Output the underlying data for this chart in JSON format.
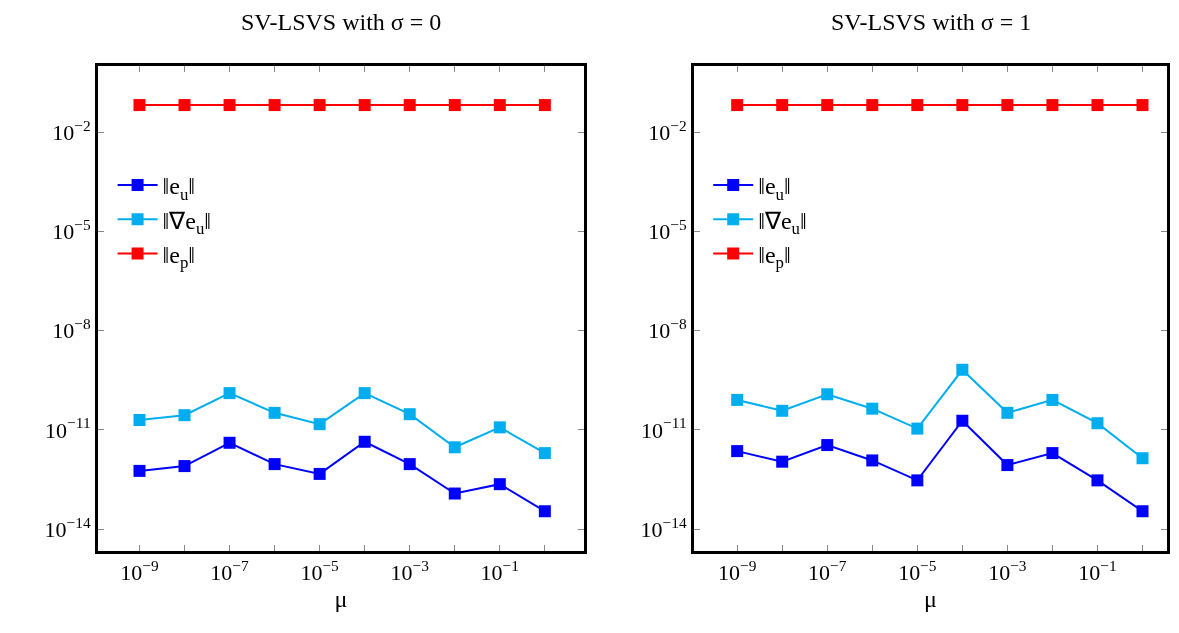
{
  "chart_data": [
    {
      "type": "line",
      "title": "SV-LSVS with σ = 0",
      "xlabel": "μ",
      "log": "xy",
      "legend": "top left",
      "marker": "square",
      "line_style": "solid",
      "x": [
        1e-09,
        1e-08,
        1e-07,
        1e-06,
        1e-05,
        0.0001,
        0.001,
        0.01,
        0.1,
        1
      ],
      "xlim": [
        1.2e-10,
        7.4
      ],
      "ylim": [
        2.2e-15,
        1
      ],
      "xticks": [
        {
          "value": 1e-09,
          "label": "10$^{−9}$"
        },
        {
          "value": 1e-08,
          "label": null
        },
        {
          "value": 1e-07,
          "label": "10$^{−7}$"
        },
        {
          "value": 1e-06,
          "label": null
        },
        {
          "value": 1e-05,
          "label": "10$^{−5}$"
        },
        {
          "value": 0.0001,
          "label": null
        },
        {
          "value": 0.001,
          "label": "10$^{−3}$"
        },
        {
          "value": 0.01,
          "label": null
        },
        {
          "value": 0.1,
          "label": "10$^{−1}$"
        },
        {
          "value": 1,
          "label": null
        }
      ],
      "yticks": [
        {
          "value": 0.01,
          "label": "10$^{−2}$"
        },
        {
          "value": 1e-05,
          "label": "10$^{−5}$"
        },
        {
          "value": 1e-08,
          "label": "10$^{−8}$"
        },
        {
          "value": 1e-11,
          "label": "10$^{−11}$"
        },
        {
          "value": 1e-14,
          "label": "10$^{−14}$"
        }
      ],
      "series": [
        {
          "name": "‖e$_{u}$‖",
          "color": "#0000ff",
          "values": [
            5.8e-13,
            8.1e-13,
            4.1e-12,
            9.3e-13,
            4.7e-13,
            4.4e-12,
            9.3e-13,
            1.2e-13,
            2.3e-13,
            3.5e-14
          ]
        },
        {
          "name": "‖∇e$_{u}$‖",
          "color": "#00aeef",
          "values": [
            2e-11,
            2.8e-11,
            1.3e-10,
            3.3e-11,
            1.5e-11,
            1.3e-10,
            3e-11,
            3e-12,
            1.2e-11,
            2e-12
          ]
        },
        {
          "name": "‖e$_{p}$‖",
          "color": "#ff0000",
          "values": [
            0.066,
            0.066,
            0.066,
            0.066,
            0.066,
            0.066,
            0.066,
            0.066,
            0.066,
            0.066
          ]
        }
      ]
    },
    {
      "type": "line",
      "title": "SV-LSVS with σ = 1",
      "xlabel": "μ",
      "log": "xy",
      "legend": "top left",
      "marker": "square",
      "line_style": "solid",
      "x": [
        1e-09,
        1e-08,
        1e-07,
        1e-06,
        1e-05,
        0.0001,
        0.001,
        0.01,
        0.1,
        1
      ],
      "xlim": [
        1.1e-10,
        3.5
      ],
      "ylim": [
        2.2e-15,
        1
      ],
      "xticks": [
        {
          "value": 1e-09,
          "label": "10$^{−9}$"
        },
        {
          "value": 1e-08,
          "label": null
        },
        {
          "value": 1e-07,
          "label": "10$^{−7}$"
        },
        {
          "value": 1e-06,
          "label": null
        },
        {
          "value": 1e-05,
          "label": "10$^{−5}$"
        },
        {
          "value": 0.0001,
          "label": null
        },
        {
          "value": 0.001,
          "label": "10$^{−3}$"
        },
        {
          "value": 0.01,
          "label": null
        },
        {
          "value": 0.1,
          "label": "10$^{−1}$"
        },
        {
          "value": 1,
          "label": null
        }
      ],
      "yticks": [
        {
          "value": 0.01,
          "label": "10$^{−2}$"
        },
        {
          "value": 1e-05,
          "label": "10$^{−5}$"
        },
        {
          "value": 1e-08,
          "label": "10$^{−8}$"
        },
        {
          "value": 1e-11,
          "label": "10$^{−11}$"
        },
        {
          "value": 1e-14,
          "label": "10$^{−14}$"
        }
      ],
      "series": [
        {
          "name": "‖e$_{u}$‖",
          "color": "#0000ff",
          "values": [
            2.3e-12,
            1.1e-12,
            3.5e-12,
            1.2e-12,
            3e-13,
            1.9e-11,
            8.7e-13,
            2e-12,
            3e-13,
            3.5e-14
          ]
        },
        {
          "name": "‖∇e$_{u}$‖",
          "color": "#00aeef",
          "values": [
            8.1e-11,
            3.8e-11,
            1.2e-10,
            4.4e-11,
            1.1e-11,
            6.6e-10,
            3.3e-11,
            8.1e-11,
            1.6e-11,
            1.4e-12
          ]
        },
        {
          "name": "‖e$_{p}$‖",
          "color": "#ff0000",
          "values": [
            0.066,
            0.066,
            0.066,
            0.066,
            0.066,
            0.066,
            0.066,
            0.066,
            0.066,
            0.066
          ]
        }
      ]
    }
  ]
}
